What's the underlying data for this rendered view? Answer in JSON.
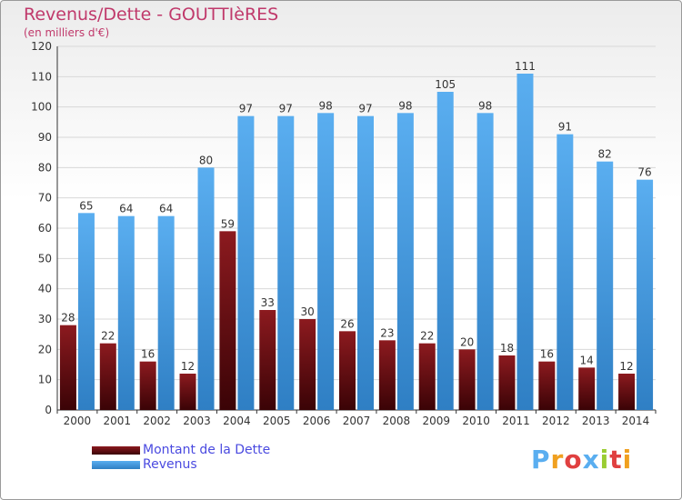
{
  "title": "Revenus/Dette - GOUTTIèRES",
  "subtitle": "(en milliers d'€)",
  "brand": "Proxiti",
  "colors": {
    "title": "#c0396b",
    "dette": "#7a0f14",
    "revenus": "#3a8fd8",
    "legend_text": "#4a4ae0"
  },
  "legend": [
    {
      "label": "Montant de la Dette",
      "color": "#7a0f14"
    },
    {
      "label": "Revenus",
      "color": "#3a8fd8"
    }
  ],
  "chart_data": {
    "type": "bar",
    "title": "Revenus/Dette - GOUTTIèRES",
    "subtitle": "(en milliers d'€)",
    "categories": [
      "2000",
      "2001",
      "2002",
      "2003",
      "2004",
      "2005",
      "2006",
      "2007",
      "2008",
      "2009",
      "2010",
      "2011",
      "2012",
      "2013",
      "2014"
    ],
    "series": [
      {
        "name": "Montant de la Dette",
        "values": [
          28,
          22,
          16,
          12,
          59,
          33,
          30,
          26,
          23,
          22,
          20,
          18,
          16,
          14,
          12
        ]
      },
      {
        "name": "Revenus",
        "values": [
          65,
          64,
          64,
          80,
          97,
          97,
          98,
          97,
          98,
          105,
          98,
          111,
          91,
          82,
          76
        ]
      }
    ],
    "ylim": [
      0,
      120
    ],
    "yticks": [
      0,
      10,
      20,
      30,
      40,
      50,
      60,
      70,
      80,
      90,
      100,
      110,
      120
    ],
    "grid": true,
    "legend_position": "bottom-left",
    "data_labels": true
  }
}
